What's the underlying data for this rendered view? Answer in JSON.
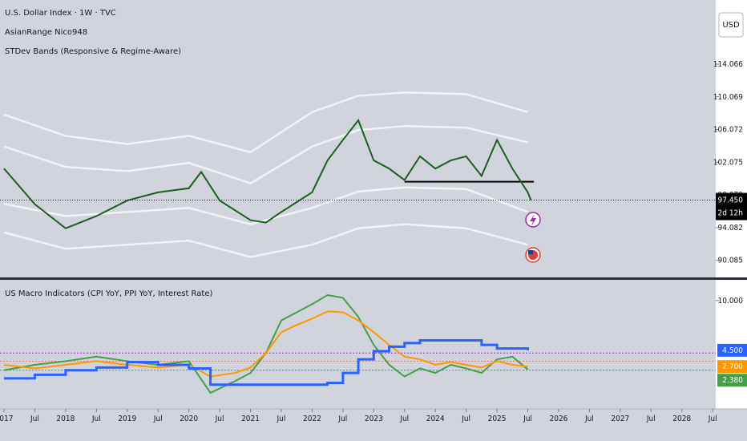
{
  "chart_data": [
    {
      "type": "line",
      "title": "U.S. Dollar Index · 1W · TVC",
      "indicators": [
        "AsianRange Nico948",
        "STDev Bands (Responsive & Regime-Aware)"
      ],
      "currency": "USD",
      "xlim": [
        2016.935,
        2028.55
      ],
      "ylim": [
        88.1,
        121.9
      ],
      "yticks": [
        114.066,
        110.069,
        106.072,
        102.075,
        98.079,
        94.082,
        90.085
      ],
      "x": [
        2017,
        2017.5,
        2018,
        2018.5,
        2019,
        2019.5,
        2020,
        2020.2,
        2020.5,
        2021,
        2021.25,
        2021.5,
        2022,
        2022.25,
        2022.5,
        2022.75,
        2023,
        2023.25,
        2023.5,
        2023.75,
        2024,
        2024.25,
        2024.5,
        2024.75,
        2025,
        2025.25,
        2025.5,
        2025.55
      ],
      "series": [
        {
          "color": "#1b5e20",
          "values": [
            101.3,
            96.95,
            94.0,
            95.5,
            97.4,
            98.4,
            98.9,
            100.9,
            97.4,
            95.0,
            94.7,
            96.0,
            98.4,
            102.3,
            104.8,
            107.2,
            102.3,
            101.3,
            99.9,
            102.8,
            101.3,
            102.3,
            102.8,
            100.4,
            104.8,
            101.3,
            98.4,
            97.45
          ]
        }
      ],
      "bands": {
        "x": [
          2017,
          2018,
          2019,
          2020,
          2021,
          2022,
          2022.75,
          2023.5,
          2024.5,
          2025.5
        ],
        "color": "#f2f3f6",
        "series": [
          {
            "values": [
              107.9,
              105.3,
              104.3,
              105.3,
              103.3,
              108.2,
              110.2,
              110.6,
              110.4,
              108.2
            ]
          },
          {
            "values": [
              104.0,
              101.5,
              101.0,
              102.0,
              99.5,
              104.0,
              106.0,
              106.5,
              106.3,
              104.5
            ]
          },
          {
            "values": [
              97.0,
              95.5,
              96.0,
              96.5,
              94.5,
              96.5,
              98.5,
              99.0,
              98.8,
              96.0
            ]
          },
          {
            "values": [
              93.5,
              91.5,
              92.0,
              92.5,
              90.5,
              92.0,
              94.0,
              94.5,
              94.0,
              92.0
            ]
          }
        ]
      },
      "support": {
        "x": [
          2023.5,
          2025.6
        ],
        "value": 99.7
      },
      "last_price": {
        "value": 97.45,
        "label": "97.450"
      },
      "countdown": "2d 12h"
    },
    {
      "type": "line",
      "title": "US Macro Indicators (CPI YoY, PPI YoY, Interest Rate)",
      "xlim": [
        2016.935,
        2028.55
      ],
      "ylim": [
        -1.8,
        12.2
      ],
      "yticks": [
        {
          "value": 10,
          "label": "10.000"
        }
      ],
      "xticks": [
        {
          "value": 2017,
          "label": "2017"
        },
        {
          "value": 2017.5,
          "label": "Jul"
        },
        {
          "value": 2018,
          "label": "2018"
        },
        {
          "value": 2018.5,
          "label": "Jul"
        },
        {
          "value": 2019,
          "label": "2019"
        },
        {
          "value": 2019.5,
          "label": "Jul"
        },
        {
          "value": 2020,
          "label": "2020"
        },
        {
          "value": 2020.5,
          "label": "Jul"
        },
        {
          "value": 2021,
          "label": "2021"
        },
        {
          "value": 2021.5,
          "label": "Jul"
        },
        {
          "value": 2022,
          "label": "2022"
        },
        {
          "value": 2022.5,
          "label": "Jul"
        },
        {
          "value": 2023,
          "label": "2023"
        },
        {
          "value": 2023.5,
          "label": "Jul"
        },
        {
          "value": 2024,
          "label": "2024"
        },
        {
          "value": 2024.5,
          "label": "Jul"
        },
        {
          "value": 2025,
          "label": "2025"
        },
        {
          "value": 2025.5,
          "label": "Jul"
        },
        {
          "value": 2026,
          "label": "2026"
        },
        {
          "value": 2026.5,
          "label": "Jul"
        },
        {
          "value": 2027,
          "label": "2027"
        },
        {
          "value": 2027.5,
          "label": "Jul"
        },
        {
          "value": 2028,
          "label": "2028"
        },
        {
          "value": 2028.5,
          "label": "Jul"
        }
      ],
      "x": [
        2017,
        2017.5,
        2018,
        2018.5,
        2019,
        2019.5,
        2020,
        2020.35,
        2020.75,
        2021,
        2021.25,
        2021.5,
        2021.75,
        2022,
        2022.25,
        2022.5,
        2022.75,
        2023,
        2023.25,
        2023.5,
        2023.75,
        2024,
        2024.25,
        2024.5,
        2024.75,
        2025,
        2025.25,
        2025.5
      ],
      "series": [
        {
          "color": "#43a047",
          "last_label": "2.380",
          "values": [
            2.3,
            2.9,
            3.3,
            3.8,
            3.3,
            2.9,
            3.3,
            -0.2,
            1.1,
            2.0,
            4.2,
            7.8,
            8.7,
            9.6,
            10.6,
            10.3,
            8.2,
            5.1,
            2.9,
            1.6,
            2.5,
            2.0,
            2.9,
            2.5,
            2.0,
            3.5,
            3.8,
            2.38
          ]
        },
        {
          "color": "#ff9800",
          "last_label": "2.700",
          "values": [
            2.9,
            2.5,
            2.9,
            3.3,
            2.9,
            2.6,
            2.9,
            1.6,
            2.0,
            2.6,
            4.2,
            6.5,
            7.3,
            8.0,
            8.8,
            8.7,
            7.8,
            6.5,
            5.1,
            3.8,
            3.5,
            2.9,
            3.2,
            2.9,
            2.6,
            3.3,
            2.9,
            2.7
          ]
        },
        {
          "color": "#2962ff",
          "step": true,
          "last_label": "4.500",
          "values": [
            1.4,
            1.8,
            2.3,
            2.6,
            3.2,
            2.9,
            2.5,
            0.7,
            0.7,
            0.7,
            0.7,
            0.7,
            0.7,
            0.7,
            0.9,
            2.0,
            3.5,
            4.4,
            4.9,
            5.3,
            5.6,
            5.6,
            5.6,
            5.6,
            5.1,
            4.7,
            4.7,
            4.5
          ]
        }
      ],
      "hlines": [
        {
          "value": 4.2,
          "color": "#9c27b0"
        },
        {
          "value": 3.3,
          "color": "#e57373"
        },
        {
          "value": 2.3,
          "color": "#26a69a"
        }
      ]
    }
  ]
}
